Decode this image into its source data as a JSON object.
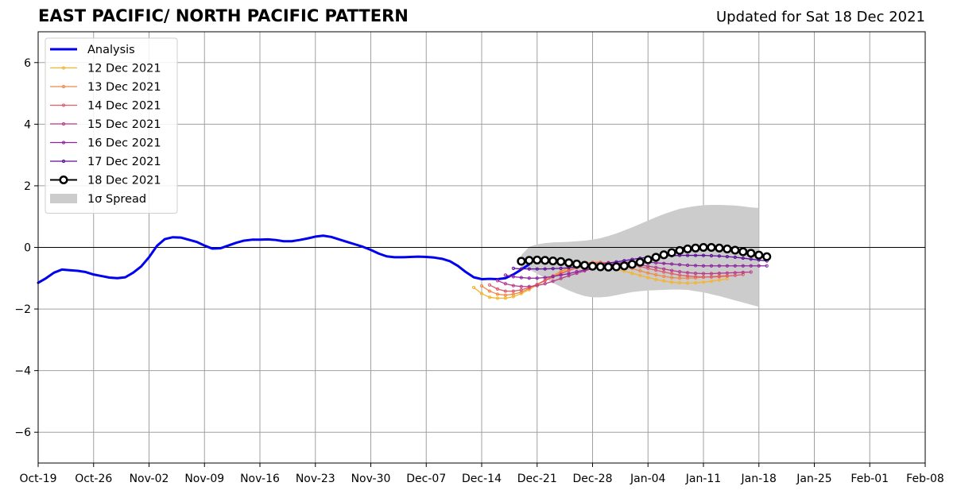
{
  "header": {
    "title": "EAST PACIFIC/ NORTH PACIFIC PATTERN",
    "updated": "Updated for Sat 18 Dec 2021"
  },
  "chart_data": {
    "type": "line",
    "title": "EAST PACIFIC/ NORTH PACIFIC PATTERN",
    "subtitle": "Updated for Sat 18 Dec 2021",
    "xlabel": "",
    "ylabel": "",
    "x_start": "2021-10-19",
    "x_end": "2022-02-08",
    "ylim": [
      -7,
      7
    ],
    "yticks": [
      -6,
      -4,
      -2,
      0,
      2,
      4,
      6
    ],
    "ytick_labels": [
      "−6",
      "−4",
      "−2",
      "0",
      "2",
      "4",
      "6"
    ],
    "xticks": [
      "2021-10-19",
      "2021-10-26",
      "2021-11-02",
      "2021-11-09",
      "2021-11-16",
      "2021-11-23",
      "2021-11-30",
      "2021-12-07",
      "2021-12-14",
      "2021-12-21",
      "2021-12-28",
      "2022-01-04",
      "2022-01-11",
      "2022-01-18",
      "2022-01-25",
      "2022-02-01",
      "2022-02-08"
    ],
    "xtick_labels": [
      "Oct-19",
      "Oct-26",
      "Nov-02",
      "Nov-09",
      "Nov-16",
      "Nov-23",
      "Nov-30",
      "Dec-07",
      "Dec-14",
      "Dec-21",
      "Dec-28",
      "Jan-04",
      "Jan-11",
      "Jan-18",
      "Jan-25",
      "Feb-01",
      "Feb-08"
    ],
    "grid": true,
    "legend_position": "upper-left",
    "zero_line": 0,
    "analysis": {
      "name": "Analysis",
      "color": "#0000ee",
      "start": "2021-10-19",
      "values": [
        -1.15,
        -1.0,
        -0.82,
        -0.72,
        -0.74,
        -0.76,
        -0.8,
        -0.88,
        -0.93,
        -0.98,
        -1.0,
        -0.97,
        -0.82,
        -0.62,
        -0.32,
        0.05,
        0.27,
        0.33,
        0.32,
        0.25,
        0.18,
        0.06,
        -0.04,
        -0.03,
        0.06,
        0.15,
        0.22,
        0.25,
        0.25,
        0.26,
        0.24,
        0.2,
        0.2,
        0.24,
        0.29,
        0.35,
        0.38,
        0.34,
        0.26,
        0.18,
        0.1,
        0.02,
        -0.08,
        -0.2,
        -0.29,
        -0.32,
        -0.32,
        -0.31,
        -0.3,
        -0.31,
        -0.33,
        -0.37,
        -0.45,
        -0.6,
        -0.8,
        -0.97,
        -1.03,
        -1.02,
        -1.03,
        -1.0,
        -0.88,
        -0.72,
        -0.55
      ]
    },
    "spread": {
      "name": "1σ Spread",
      "color": "#cccccc",
      "start": "2021-12-19",
      "upper": [
        -0.25,
        0.02,
        0.1,
        0.14,
        0.16,
        0.17,
        0.18,
        0.2,
        0.22,
        0.25,
        0.3,
        0.37,
        0.45,
        0.55,
        0.65,
        0.76,
        0.87,
        0.98,
        1.08,
        1.17,
        1.25,
        1.3,
        1.34,
        1.37,
        1.38,
        1.38,
        1.37,
        1.36,
        1.33,
        1.3,
        1.28
      ],
      "lower": [
        -0.65,
        -0.72,
        -0.85,
        -1.0,
        -1.15,
        -1.28,
        -1.4,
        -1.5,
        -1.58,
        -1.62,
        -1.62,
        -1.6,
        -1.55,
        -1.5,
        -1.45,
        -1.42,
        -1.4,
        -1.39,
        -1.38,
        -1.37,
        -1.37,
        -1.38,
        -1.42,
        -1.46,
        -1.52,
        -1.58,
        -1.65,
        -1.72,
        -1.79,
        -1.86,
        -1.93
      ]
    },
    "forecasts": [
      {
        "name": "12 Dec 2021",
        "color": "#f4b42f",
        "start": "2021-12-13",
        "values": [
          -1.3,
          -1.5,
          -1.62,
          -1.65,
          -1.65,
          -1.6,
          -1.5,
          -1.37,
          -1.22,
          -1.08,
          -0.95,
          -0.82,
          -0.72,
          -0.66,
          -0.62,
          -0.6,
          -0.62,
          -0.66,
          -0.71,
          -0.77,
          -0.84,
          -0.91,
          -0.98,
          -1.04,
          -1.09,
          -1.13,
          -1.15,
          -1.16,
          -1.15,
          -1.13,
          -1.1,
          -1.06,
          -1.02
        ]
      },
      {
        "name": "13 Dec 2021",
        "color": "#ee8a47",
        "start": "2021-12-14",
        "values": [
          -1.25,
          -1.42,
          -1.52,
          -1.55,
          -1.52,
          -1.45,
          -1.33,
          -1.2,
          -1.06,
          -0.92,
          -0.78,
          -0.66,
          -0.57,
          -0.51,
          -0.48,
          -0.48,
          -0.51,
          -0.56,
          -0.62,
          -0.69,
          -0.76,
          -0.83,
          -0.89,
          -0.94,
          -0.98,
          -1.0,
          -1.0,
          -0.99,
          -0.97,
          -0.95,
          -0.93,
          -0.92
        ]
      },
      {
        "name": "14 Dec 2021",
        "color": "#dd5e6a",
        "start": "2021-12-15",
        "values": [
          -1.22,
          -1.35,
          -1.42,
          -1.42,
          -1.38,
          -1.3,
          -1.2,
          -1.08,
          -0.96,
          -0.85,
          -0.75,
          -0.66,
          -0.59,
          -0.53,
          -0.5,
          -0.49,
          -0.5,
          -0.53,
          -0.57,
          -0.62,
          -0.68,
          -0.74,
          -0.8,
          -0.85,
          -0.9,
          -0.93,
          -0.95,
          -0.96,
          -0.96,
          -0.95,
          -0.93,
          -0.91,
          -0.88
        ]
      },
      {
        "name": "15 Dec 2021",
        "color": "#b83b8c",
        "start": "2021-12-16",
        "values": [
          -1.08,
          -1.18,
          -1.24,
          -1.27,
          -1.27,
          -1.24,
          -1.18,
          -1.1,
          -1.01,
          -0.92,
          -0.84,
          -0.76,
          -0.69,
          -0.63,
          -0.58,
          -0.55,
          -0.54,
          -0.55,
          -0.57,
          -0.61,
          -0.65,
          -0.7,
          -0.75,
          -0.79,
          -0.82,
          -0.84,
          -0.85,
          -0.85,
          -0.84,
          -0.83,
          -0.82,
          -0.81,
          -0.8
        ]
      },
      {
        "name": "16 Dec 2021",
        "color": "#8e229f",
        "start": "2021-12-17",
        "values": [
          -0.9,
          -0.95,
          -0.98,
          -1.0,
          -1.0,
          -0.98,
          -0.94,
          -0.9,
          -0.85,
          -0.79,
          -0.73,
          -0.67,
          -0.61,
          -0.56,
          -0.52,
          -0.49,
          -0.47,
          -0.47,
          -0.48,
          -0.5,
          -0.52,
          -0.54,
          -0.56,
          -0.58,
          -0.59,
          -0.6,
          -0.6,
          -0.6,
          -0.6,
          -0.6,
          -0.6,
          -0.6,
          -0.6,
          -0.6
        ]
      },
      {
        "name": "17 Dec 2021",
        "color": "#5a0c9c",
        "start": "2021-12-18",
        "values": [
          -0.68,
          -0.7,
          -0.7,
          -0.7,
          -0.7,
          -0.69,
          -0.68,
          -0.66,
          -0.64,
          -0.61,
          -0.58,
          -0.55,
          -0.51,
          -0.47,
          -0.43,
          -0.39,
          -0.35,
          -0.32,
          -0.3,
          -0.28,
          -0.27,
          -0.26,
          -0.26,
          -0.26,
          -0.26,
          -0.27,
          -0.28,
          -0.3,
          -0.32,
          -0.35,
          -0.38,
          -0.41,
          -0.44
        ]
      },
      {
        "name": "18 Dec 2021",
        "color": "#000000",
        "start": "2021-12-19",
        "values": [
          -0.45,
          -0.42,
          -0.41,
          -0.42,
          -0.44,
          -0.46,
          -0.5,
          -0.54,
          -0.58,
          -0.61,
          -0.63,
          -0.64,
          -0.63,
          -0.6,
          -0.55,
          -0.48,
          -0.4,
          -0.32,
          -0.24,
          -0.17,
          -0.1,
          -0.05,
          -0.02,
          0.0,
          0.0,
          -0.02,
          -0.05,
          -0.09,
          -0.14,
          -0.19,
          -0.25,
          -0.3
        ]
      }
    ]
  }
}
